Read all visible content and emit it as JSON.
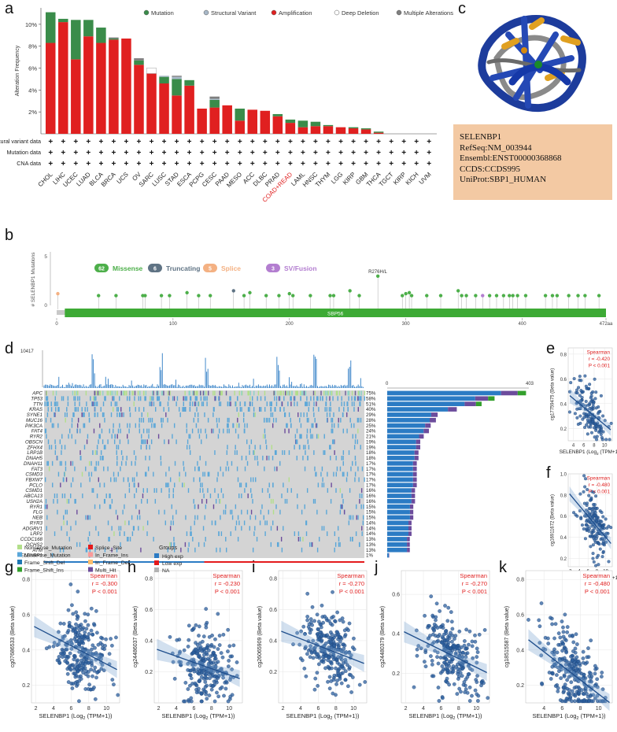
{
  "panel_labels": {
    "a": "a",
    "b": "b",
    "c": "c",
    "d": "d",
    "e": "e",
    "f": "f",
    "g": "g",
    "h": "h",
    "i": "i",
    "j": "j",
    "k": "k"
  },
  "colors": {
    "mutation": "#3a8c4a",
    "structural_variant": "#a8b8c8",
    "amplification": "#e02020",
    "deep_deletion": "#ffffff",
    "multiple": "#7f7f7f",
    "missense": "#4daf4a",
    "truncating": "#5f7384",
    "splice": "#f4b183",
    "sv_fusion": "#b37ed0",
    "scatter_point": "#2c5f9e",
    "fit_line": "#1f4e8c",
    "spearman_text": "#e02020",
    "high_exp": "#2b7bc4",
    "low_exp": "#e41a1c"
  },
  "chart_data": [
    {
      "id": "a",
      "type": "bar",
      "ylabel": "Alteration Frequency",
      "yticks": [
        "2%",
        "4%",
        "6%",
        "8%",
        "10%"
      ],
      "ylim": [
        0,
        11.5
      ],
      "legend": [
        "Mutation",
        "Structural Variant",
        "Amplification",
        "Deep Deletion",
        "Multiple Alterations"
      ],
      "categories": [
        "CHOL",
        "LIHC",
        "UCEC",
        "LUAD",
        "BLCA",
        "BRCA",
        "UCS",
        "OV",
        "SARC",
        "LUSC",
        "STAD",
        "ESCA",
        "PCPG",
        "CESC",
        "PAAD",
        "MESO",
        "ACC",
        "DLBC",
        "PRAD",
        "COAD+READ",
        "LAML",
        "HNSC",
        "THYM",
        "LGG",
        "KIRP",
        "GBM",
        "THCA",
        "TGCT",
        "KIRP",
        "KICH",
        "UVM"
      ],
      "highlight_category": "COAD+READ",
      "series": [
        {
          "name": "Amplification",
          "values": [
            8.3,
            10.2,
            6.8,
            8.9,
            8.3,
            8.6,
            8.7,
            6.3,
            5.5,
            4.6,
            3.5,
            4.4,
            2.3,
            2.4,
            2.6,
            1.2,
            2.2,
            2.1,
            1.6,
            1.0,
            0.6,
            0.7,
            0.7,
            0.6,
            0.5,
            0.4,
            0.1,
            0,
            0,
            0,
            0
          ]
        },
        {
          "name": "Mutation",
          "values": [
            2.8,
            0.3,
            3.6,
            1.5,
            1.4,
            0.1,
            0,
            0.4,
            0,
            0.6,
            1.5,
            0.5,
            0,
            0.7,
            0,
            1.1,
            0,
            0,
            0.2,
            0.3,
            0.6,
            0.4,
            0.1,
            0,
            0.1,
            0.1,
            0.1,
            0,
            0,
            0,
            0
          ]
        },
        {
          "name": "Structural Variant",
          "values": [
            0,
            0,
            0,
            0,
            0,
            0,
            0,
            0,
            0,
            0.1,
            0.2,
            0,
            0,
            0.1,
            0,
            0,
            0,
            0,
            0,
            0,
            0,
            0,
            0,
            0,
            0,
            0,
            0,
            0,
            0,
            0,
            0
          ]
        },
        {
          "name": "Deep Deletion",
          "values": [
            0,
            0,
            0,
            0,
            0,
            0,
            0,
            0,
            0.5,
            0,
            0,
            0,
            0,
            0,
            0,
            0,
            0,
            0,
            0,
            0,
            0,
            0,
            0,
            0,
            0,
            0,
            0,
            0,
            0,
            0,
            0
          ]
        },
        {
          "name": "Multiple Alterations",
          "values": [
            0,
            0,
            0,
            0,
            0,
            0.1,
            0,
            0.2,
            0,
            0,
            0.1,
            0,
            0,
            0.2,
            0,
            0,
            0,
            0,
            0,
            0,
            0,
            0,
            0,
            0,
            0,
            0,
            0,
            0,
            0,
            0,
            0
          ]
        }
      ],
      "rows": [
        "Structural variant data",
        "Mutation data",
        "CNA data"
      ],
      "row_marker": "+"
    },
    {
      "id": "b",
      "type": "lollipop",
      "ylabel": "# SELENBP1 Mutations",
      "yticks": [
        "0",
        "5"
      ],
      "legend": [
        {
          "count": "62",
          "label": "Missense"
        },
        {
          "count": "6",
          "label": "Truncating"
        },
        {
          "count": "5",
          "label": "Splice"
        },
        {
          "count": "3",
          "label": "SV/Fusion"
        }
      ],
      "annotation": "R276H/L",
      "domain_label": "SBP56",
      "xticks": [
        "0",
        "100",
        "200",
        "300",
        "400",
        "472aa"
      ],
      "xlim": [
        0,
        472
      ],
      "domain_range": [
        7,
        472
      ],
      "mutations": [
        {
          "pos": 1,
          "h": 1.2,
          "t": "splice"
        },
        {
          "pos": 36,
          "h": 1.0,
          "t": "missense"
        },
        {
          "pos": 51,
          "h": 1.0,
          "t": "missense"
        },
        {
          "pos": 74,
          "h": 1.0,
          "t": "missense"
        },
        {
          "pos": 76,
          "h": 1.0,
          "t": "missense"
        },
        {
          "pos": 90,
          "h": 1.0,
          "t": "missense"
        },
        {
          "pos": 97,
          "h": 1.0,
          "t": "missense"
        },
        {
          "pos": 112,
          "h": 1.3,
          "t": "missense"
        },
        {
          "pos": 122,
          "h": 1.0,
          "t": "missense"
        },
        {
          "pos": 132,
          "h": 1.0,
          "t": "missense"
        },
        {
          "pos": 152,
          "h": 1.5,
          "t": "truncating"
        },
        {
          "pos": 161,
          "h": 1.0,
          "t": "missense"
        },
        {
          "pos": 166,
          "h": 1.3,
          "t": "missense"
        },
        {
          "pos": 180,
          "h": 1.0,
          "t": "missense"
        },
        {
          "pos": 191,
          "h": 1.0,
          "t": "missense"
        },
        {
          "pos": 200,
          "h": 1.2,
          "t": "missense"
        },
        {
          "pos": 203,
          "h": 1.0,
          "t": "missense"
        },
        {
          "pos": 218,
          "h": 1.0,
          "t": "missense"
        },
        {
          "pos": 235,
          "h": 1.0,
          "t": "missense"
        },
        {
          "pos": 238,
          "h": 1.0,
          "t": "missense"
        },
        {
          "pos": 252,
          "h": 1.5,
          "t": "missense"
        },
        {
          "pos": 260,
          "h": 1.0,
          "t": "missense"
        },
        {
          "pos": 276,
          "h": 3.0,
          "t": "missense"
        },
        {
          "pos": 297,
          "h": 1.0,
          "t": "missense"
        },
        {
          "pos": 300,
          "h": 1.2,
          "t": "missense"
        },
        {
          "pos": 303,
          "h": 1.3,
          "t": "missense"
        },
        {
          "pos": 305,
          "h": 1.0,
          "t": "missense"
        },
        {
          "pos": 318,
          "h": 1.0,
          "t": "missense"
        },
        {
          "pos": 330,
          "h": 1.0,
          "t": "missense"
        },
        {
          "pos": 345,
          "h": 1.5,
          "t": "missense"
        },
        {
          "pos": 348,
          "h": 1.0,
          "t": "missense"
        },
        {
          "pos": 352,
          "h": 1.0,
          "t": "missense"
        },
        {
          "pos": 360,
          "h": 1.0,
          "t": "missense"
        },
        {
          "pos": 366,
          "h": 1.0,
          "t": "sv_fusion"
        },
        {
          "pos": 372,
          "h": 1.0,
          "t": "missense"
        },
        {
          "pos": 378,
          "h": 1.0,
          "t": "missense"
        },
        {
          "pos": 384,
          "h": 1.0,
          "t": "missense"
        },
        {
          "pos": 389,
          "h": 1.0,
          "t": "missense"
        },
        {
          "pos": 392,
          "h": 1.0,
          "t": "missense"
        },
        {
          "pos": 396,
          "h": 1.0,
          "t": "missense"
        },
        {
          "pos": 403,
          "h": 1.0,
          "t": "missense"
        },
        {
          "pos": 420,
          "h": 1.0,
          "t": "missense"
        },
        {
          "pos": 426,
          "h": 1.0,
          "t": "missense"
        },
        {
          "pos": 430,
          "h": 1.0,
          "t": "missense"
        },
        {
          "pos": 440,
          "h": 1.0,
          "t": "missense"
        },
        {
          "pos": 448,
          "h": 1.0,
          "t": "missense"
        },
        {
          "pos": 454,
          "h": 1.0,
          "t": "missense"
        },
        {
          "pos": 466,
          "h": 1.0,
          "t": "missense"
        }
      ]
    },
    {
      "id": "d",
      "type": "heatmap",
      "top_max": "10417",
      "right_max": "403",
      "genes": [
        "APC",
        "TP53",
        "TTN",
        "KRAS",
        "SYNE1",
        "MUC16",
        "PIK3CA",
        "FAT4",
        "RYR2",
        "OBSCN",
        "ZFHX4",
        "LRP1B",
        "DNAH5",
        "DNAH11",
        "FAT3",
        "CSMD3",
        "FBXW7",
        "PCLO",
        "CSMD1",
        "ABCA13",
        "USH2A",
        "RYR1",
        "FLG",
        "NEB",
        "RYR3",
        "ADGRV1",
        "LRP2",
        "CCDC168",
        "DCHS2",
        "ATM",
        "SELENBP1"
      ],
      "percents": [
        "75%",
        "58%",
        "51%",
        "40%",
        "29%",
        "28%",
        "25%",
        "24%",
        "21%",
        "19%",
        "19%",
        "18%",
        "18%",
        "17%",
        "17%",
        "17%",
        "17%",
        "17%",
        "16%",
        "16%",
        "16%",
        "15%",
        "15%",
        "15%",
        "14%",
        "14%",
        "14%",
        "13%",
        "13%",
        "13%",
        "1%"
      ],
      "legend_types": [
        "Nonsense_Mutation",
        "Missense_Mutation",
        "Frame_Shift_Del",
        "Frame_Shift_Ins",
        "Splice_Site",
        "In_Frame_Ins",
        "In_Frame_Del",
        "Multi_Hit"
      ],
      "groups_title": "Groups",
      "groups": [
        "High exp",
        "Low exp",
        "NA"
      ],
      "groups_bar_label": "Groups"
    },
    {
      "id": "e",
      "type": "scatter",
      "xlabel": "SELENBP1 (Log",
      "xlabel_sub": "2",
      "xlabel_end": " (TPM+1))",
      "ylabel": "cg17759475 (Beta value)",
      "xticks": [
        "4",
        "6",
        "8",
        "10"
      ],
      "yticks": [
        "0.2",
        "0.4",
        "0.6",
        "0.8"
      ],
      "xlim": [
        3,
        11.5
      ],
      "ylim": [
        0.1,
        0.85
      ],
      "stat_title": "Spearman",
      "r": "r = -0.420",
      "p": "P < 0.001",
      "slope": -0.035,
      "intercept": 0.58
    },
    {
      "id": "f",
      "type": "scatter",
      "xlabel": "SELENBP1 (Log",
      "xlabel_sub": "2",
      "xlabel_end": " (TPM+1))",
      "ylabel": "cg16911672 (Beta value)",
      "xticks": [
        "2",
        "4",
        "6",
        "8",
        "10"
      ],
      "yticks": [
        "0.2",
        "0.4",
        "0.6",
        "0.8",
        "1.0"
      ],
      "xlim": [
        1.5,
        11.5
      ],
      "ylim": [
        0.12,
        1.0
      ],
      "stat_title": "Spearman",
      "r": "r = -0.480",
      "p": "P < 0.001",
      "slope": -0.05,
      "intercept": 0.9
    },
    {
      "id": "g",
      "type": "scatter",
      "xlabel": "SELENBP1 (Log",
      "xlabel_sub": "2",
      "xlabel_end": " (TPM+1))",
      "ylabel": "cg07686533 (Beta value)",
      "xticks": [
        "2",
        "4",
        "6",
        "8",
        "10"
      ],
      "yticks": [
        "0.2",
        "0.4",
        "0.6",
        "0.8"
      ],
      "xlim": [
        1.5,
        11.5
      ],
      "ylim": [
        0.1,
        0.85
      ],
      "stat_title": "Spearman",
      "r": "r = -0.300",
      "p": "P < 0.001",
      "slope": -0.026,
      "intercept": 0.58
    },
    {
      "id": "h",
      "type": "scatter",
      "xlabel": "SELENBP1 (Log",
      "xlabel_sub": "2",
      "xlabel_end": " (TPM+1))",
      "ylabel": "cg24486037 (Beta value)",
      "xticks": [
        "2",
        "4",
        "6",
        "8",
        "10"
      ],
      "yticks": [
        "0.2",
        "0.4",
        "0.6",
        "0.8"
      ],
      "xlim": [
        1.5,
        11.5
      ],
      "ylim": [
        0.0,
        0.85
      ],
      "stat_title": "Spearman",
      "r": "r = -0.230",
      "p": "P < 0.001",
      "slope": -0.02,
      "intercept": 0.38
    },
    {
      "id": "i",
      "type": "scatter",
      "xlabel": "SELENBP1 (Log",
      "xlabel_sub": "2",
      "xlabel_end": " (TPM+1))",
      "ylabel": "cg26065909 (Beta value)",
      "xticks": [
        "2",
        "4",
        "6",
        "8",
        "10"
      ],
      "yticks": [
        "0.2",
        "0.4",
        "0.6",
        "0.8"
      ],
      "xlim": [
        1.5,
        11.5
      ],
      "ylim": [
        0.0,
        0.85
      ],
      "stat_title": "Spearman",
      "r": "r = -0.270",
      "p": "P < 0.001",
      "slope": -0.022,
      "intercept": 0.5
    },
    {
      "id": "j",
      "type": "scatter",
      "xlabel": "SELENBP1 (Log",
      "xlabel_sub": "2",
      "xlabel_end": " (TPM+1))",
      "ylabel": "cg24480379 (Beta value)",
      "xticks": [
        "2",
        "4",
        "6",
        "8",
        "10"
      ],
      "yticks": [
        "0.2",
        "0.4",
        "0.6"
      ],
      "xlim": [
        1.5,
        11.5
      ],
      "ylim": [
        0.05,
        0.72
      ],
      "stat_title": "Spearman",
      "r": "r = -0.270",
      "p": "P < 0.001",
      "slope": -0.022,
      "intercept": 0.45
    },
    {
      "id": "k",
      "type": "scatter",
      "xlabel": "SELENBP1 (Log",
      "xlabel_sub": "2",
      "xlabel_end": " (TPM+1))",
      "ylabel": "cg18515587 (Beta value)",
      "xticks": [
        "4",
        "6",
        "8",
        "10"
      ],
      "yticks": [
        "0.2",
        "0.4",
        "0.6",
        "0.8"
      ],
      "xlim": [
        2,
        11.5
      ],
      "ylim": [
        0.1,
        0.85
      ],
      "stat_title": "Spearman",
      "r": "r = -0.480",
      "p": "P < 0.001",
      "slope": -0.04,
      "intercept": 0.55
    }
  ],
  "protein_info": {
    "name": "SELENBP1",
    "refseq": "RefSeq:NM_003944",
    "ensembl": "Ensembl:ENST00000368868",
    "ccds": "CCDS:CCDS995",
    "uniprot": "UniProt:SBP1_HUMAN"
  }
}
